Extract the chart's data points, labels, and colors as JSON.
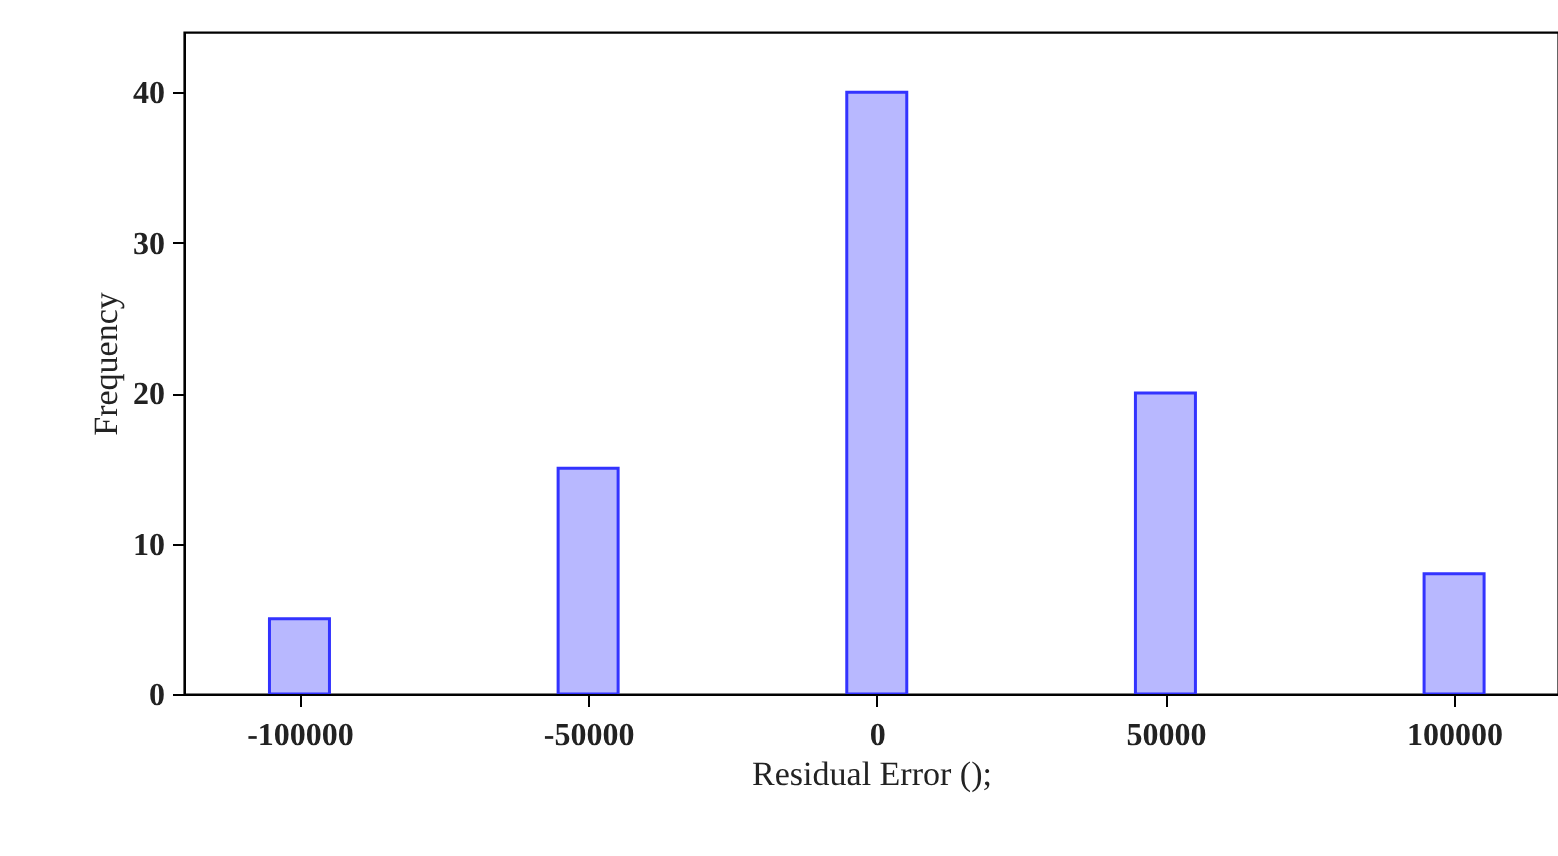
{
  "chart_data": {
    "type": "bar",
    "xlabel": "Residual Error ();",
    "ylabel": "Frequency",
    "x": [
      -100000,
      -50000,
      0,
      50000,
      100000
    ],
    "series": [
      {
        "color": "#3333ff",
        "values": [
          5,
          15,
          40,
          20,
          8
        ]
      }
    ],
    "xlim": [
      -120000,
      118000
    ],
    "xticks": [
      -100000,
      -50000,
      0,
      50000,
      100000
    ],
    "ylim": [
      0,
      44
    ],
    "yticks": [
      0,
      10,
      20,
      30,
      40
    ]
  }
}
